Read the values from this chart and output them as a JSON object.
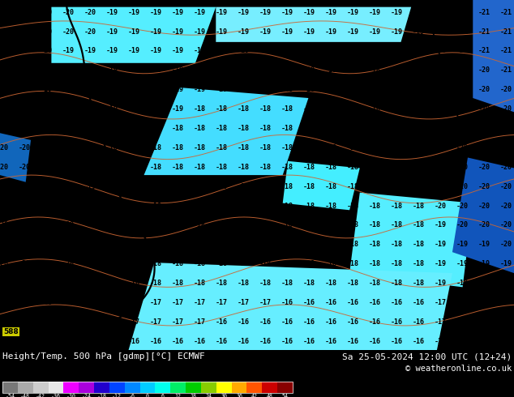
{
  "title_left": "Height/Temp. 500 hPa [gdmp][°C] ECMWF",
  "title_right": "Sa 25-05-2024 12:00 UTC (12+24)",
  "copyright": "© weatheronline.co.uk",
  "colorbar_ticks": [
    -54,
    -48,
    -42,
    -36,
    -30,
    -24,
    -18,
    -12,
    -6,
    0,
    6,
    12,
    18,
    24,
    30,
    36,
    42,
    48,
    54
  ],
  "colorbar_colors": [
    "#787878",
    "#aaaaaa",
    "#cccccc",
    "#e8e8e8",
    "#ee00ff",
    "#aa00dd",
    "#2200cc",
    "#0044ff",
    "#0088ff",
    "#00ccff",
    "#00ffee",
    "#00ee66",
    "#00cc00",
    "#88cc00",
    "#ffff00",
    "#ffaa00",
    "#ff5500",
    "#cc0000",
    "#880000"
  ],
  "map_bg": "#00ccff",
  "footer_bg": "#000000",
  "temp_labels": {
    "rows": 18,
    "cols": 24,
    "fontsize": 6.0
  }
}
